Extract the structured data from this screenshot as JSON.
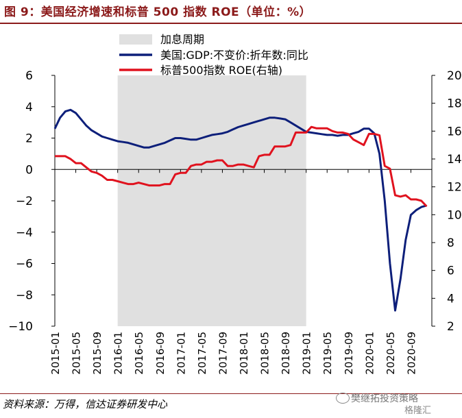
{
  "header": {
    "title": "图 9：美国经济增速和标普 500 指数 ROE（单位：%）"
  },
  "footer": {
    "source": "资料来源：万得，信达证券研发中心",
    "watermark": "樊继拓投资策略",
    "watermark2": "格隆汇"
  },
  "chart_data": {
    "type": "line",
    "x_tick_labels": [
      "2015-01",
      "2015-05",
      "2015-09",
      "2016-01",
      "2016-05",
      "2016-09",
      "2017-01",
      "2017-05",
      "2017-09",
      "2018-01",
      "2018-05",
      "2018-09",
      "2019-01",
      "2019-05",
      "2019-09",
      "2020-01",
      "2020-05",
      "2020-09"
    ],
    "x_range": [
      "2015-01",
      "2020-12"
    ],
    "shaded_region": {
      "label": "加息周期",
      "start": "2016-01",
      "end": "2019-01",
      "color": "#e0e0e0"
    },
    "y_left": {
      "range": [
        -10,
        6
      ],
      "ticks": [
        -10,
        -8,
        -6,
        -4,
        -2,
        0,
        2,
        4,
        6
      ]
    },
    "y_right": {
      "range": [
        2,
        20
      ],
      "ticks": [
        2,
        4,
        6,
        8,
        10,
        12,
        14,
        16,
        18,
        20
      ]
    },
    "series": [
      {
        "name": "美国:GDP:不变价:折年数:同比",
        "axis": "left",
        "color": "#0d1f7a",
        "points": [
          [
            "2015-01",
            2.6
          ],
          [
            "2015-02",
            3.3
          ],
          [
            "2015-03",
            3.7
          ],
          [
            "2015-04",
            3.8
          ],
          [
            "2015-05",
            3.6
          ],
          [
            "2015-06",
            3.2
          ],
          [
            "2015-07",
            2.8
          ],
          [
            "2015-08",
            2.5
          ],
          [
            "2015-09",
            2.3
          ],
          [
            "2015-10",
            2.1
          ],
          [
            "2015-11",
            2.0
          ],
          [
            "2015-12",
            1.9
          ],
          [
            "2016-01",
            1.8
          ],
          [
            "2016-02",
            1.75
          ],
          [
            "2016-03",
            1.7
          ],
          [
            "2016-04",
            1.6
          ],
          [
            "2016-05",
            1.5
          ],
          [
            "2016-06",
            1.4
          ],
          [
            "2016-07",
            1.4
          ],
          [
            "2016-08",
            1.5
          ],
          [
            "2016-09",
            1.6
          ],
          [
            "2016-10",
            1.7
          ],
          [
            "2016-11",
            1.85
          ],
          [
            "2016-12",
            2.0
          ],
          [
            "2017-01",
            2.0
          ],
          [
            "2017-02",
            1.95
          ],
          [
            "2017-03",
            1.9
          ],
          [
            "2017-04",
            1.9
          ],
          [
            "2017-05",
            2.0
          ],
          [
            "2017-06",
            2.1
          ],
          [
            "2017-07",
            2.2
          ],
          [
            "2017-08",
            2.25
          ],
          [
            "2017-09",
            2.3
          ],
          [
            "2017-10",
            2.4
          ],
          [
            "2017-11",
            2.55
          ],
          [
            "2017-12",
            2.7
          ],
          [
            "2018-01",
            2.8
          ],
          [
            "2018-02",
            2.9
          ],
          [
            "2018-03",
            3.0
          ],
          [
            "2018-04",
            3.1
          ],
          [
            "2018-05",
            3.2
          ],
          [
            "2018-06",
            3.3
          ],
          [
            "2018-07",
            3.3
          ],
          [
            "2018-08",
            3.25
          ],
          [
            "2018-09",
            3.2
          ],
          [
            "2018-10",
            3.0
          ],
          [
            "2018-11",
            2.8
          ],
          [
            "2018-12",
            2.6
          ],
          [
            "2019-01",
            2.4
          ],
          [
            "2019-02",
            2.35
          ],
          [
            "2019-03",
            2.3
          ],
          [
            "2019-04",
            2.25
          ],
          [
            "2019-05",
            2.2
          ],
          [
            "2019-06",
            2.2
          ],
          [
            "2019-07",
            2.15
          ],
          [
            "2019-08",
            2.2
          ],
          [
            "2019-09",
            2.2
          ],
          [
            "2019-10",
            2.3
          ],
          [
            "2019-11",
            2.4
          ],
          [
            "2019-12",
            2.6
          ],
          [
            "2020-01",
            2.6
          ],
          [
            "2020-02",
            2.3
          ],
          [
            "2020-03",
            1.0
          ],
          [
            "2020-04",
            -2.0
          ],
          [
            "2020-05",
            -6.0
          ],
          [
            "2020-06",
            -9.0
          ],
          [
            "2020-07",
            -7.0
          ],
          [
            "2020-08",
            -4.5
          ],
          [
            "2020-09",
            -2.9
          ],
          [
            "2020-10",
            -2.6
          ],
          [
            "2020-11",
            -2.4
          ],
          [
            "2020-12",
            -2.3
          ]
        ]
      },
      {
        "name": "标普500指数 ROE(右轴)",
        "axis": "right",
        "color": "#e0121e",
        "points": [
          [
            "2015-01",
            14.2
          ],
          [
            "2015-02",
            14.2
          ],
          [
            "2015-03",
            14.2
          ],
          [
            "2015-04",
            14.0
          ],
          [
            "2015-05",
            13.7
          ],
          [
            "2015-06",
            13.7
          ],
          [
            "2015-07",
            13.4
          ],
          [
            "2015-08",
            13.1
          ],
          [
            "2015-09",
            13.0
          ],
          [
            "2015-10",
            12.8
          ],
          [
            "2015-11",
            12.5
          ],
          [
            "2015-12",
            12.5
          ],
          [
            "2016-01",
            12.4
          ],
          [
            "2016-02",
            12.3
          ],
          [
            "2016-03",
            12.2
          ],
          [
            "2016-04",
            12.2
          ],
          [
            "2016-05",
            12.3
          ],
          [
            "2016-06",
            12.2
          ],
          [
            "2016-07",
            12.1
          ],
          [
            "2016-08",
            12.1
          ],
          [
            "2016-09",
            12.1
          ],
          [
            "2016-10",
            12.2
          ],
          [
            "2016-11",
            12.2
          ],
          [
            "2016-12",
            12.9
          ],
          [
            "2017-01",
            13.0
          ],
          [
            "2017-02",
            13.0
          ],
          [
            "2017-03",
            13.5
          ],
          [
            "2017-04",
            13.6
          ],
          [
            "2017-05",
            13.6
          ],
          [
            "2017-06",
            13.8
          ],
          [
            "2017-07",
            13.8
          ],
          [
            "2017-08",
            13.9
          ],
          [
            "2017-09",
            13.9
          ],
          [
            "2017-10",
            13.5
          ],
          [
            "2017-11",
            13.5
          ],
          [
            "2017-12",
            13.6
          ],
          [
            "2018-01",
            13.6
          ],
          [
            "2018-02",
            13.5
          ],
          [
            "2018-03",
            13.4
          ],
          [
            "2018-04",
            14.2
          ],
          [
            "2018-05",
            14.3
          ],
          [
            "2018-06",
            14.3
          ],
          [
            "2018-07",
            14.9
          ],
          [
            "2018-08",
            14.9
          ],
          [
            "2018-09",
            14.9
          ],
          [
            "2018-10",
            15.0
          ],
          [
            "2018-11",
            15.9
          ],
          [
            "2018-12",
            15.9
          ],
          [
            "2019-01",
            15.9
          ],
          [
            "2019-02",
            16.3
          ],
          [
            "2019-03",
            16.2
          ],
          [
            "2019-04",
            16.2
          ],
          [
            "2019-05",
            16.2
          ],
          [
            "2019-06",
            16.0
          ],
          [
            "2019-07",
            15.9
          ],
          [
            "2019-08",
            15.9
          ],
          [
            "2019-09",
            15.8
          ],
          [
            "2019-10",
            15.4
          ],
          [
            "2019-11",
            15.2
          ],
          [
            "2019-12",
            15.0
          ],
          [
            "2020-01",
            15.8
          ],
          [
            "2020-02",
            15.8
          ],
          [
            "2020-03",
            15.7
          ],
          [
            "2020-04",
            13.5
          ],
          [
            "2020-05",
            13.3
          ],
          [
            "2020-06",
            11.4
          ],
          [
            "2020-07",
            11.3
          ],
          [
            "2020-08",
            11.4
          ],
          [
            "2020-09",
            11.1
          ],
          [
            "2020-10",
            11.1
          ],
          [
            "2020-11",
            11.0
          ],
          [
            "2020-12",
            10.6
          ]
        ]
      }
    ],
    "grid": false,
    "legend_position": "top-left"
  }
}
